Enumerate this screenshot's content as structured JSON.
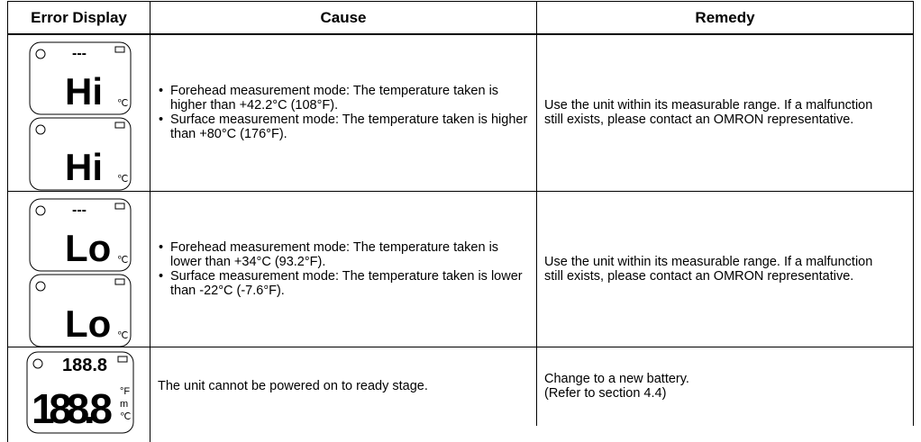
{
  "table": {
    "header": [
      "Error Display",
      "Cause",
      "Remedy"
    ],
    "rows": [
      {
        "displays": [
          {
            "top": "---",
            "main": "Hi",
            "units": [
              "℃"
            ]
          },
          {
            "main": "Hi",
            "units": [
              "℃"
            ]
          }
        ],
        "cause": [
          "Forehead measurement mode: The temperature taken is higher than +42.2°C (108°F).",
          "Surface measurement mode: The temperature taken is higher than +80°C (176°F)."
        ],
        "remedy": [
          "Use the unit within its measurable range. If a malfunction still exists, please contact an OMRON representative."
        ]
      },
      {
        "displays": [
          {
            "top": "---",
            "main": "Lo",
            "units": [
              "℃"
            ]
          },
          {
            "main": "Lo",
            "units": [
              "℃"
            ]
          }
        ],
        "cause": [
          "Forehead measurement mode: The temperature taken is lower than +34°C (93.2°F).",
          "Surface measurement mode: The temperature taken is lower than -22°C (-7.6°F)."
        ],
        "remedy": [
          "Use the unit within its measurable range. If a malfunction still exists, please contact an OMRON representative."
        ]
      },
      {
        "displays": [
          {
            "top": "188.8",
            "main": "188.8",
            "units": [
              "°F",
              "m",
              "℃"
            ]
          }
        ],
        "cause": [
          "The unit cannot be powered on to ready stage."
        ],
        "remedy": [
          "Change to a new battery.",
          "(Refer to section 4.4)"
        ]
      }
    ]
  }
}
